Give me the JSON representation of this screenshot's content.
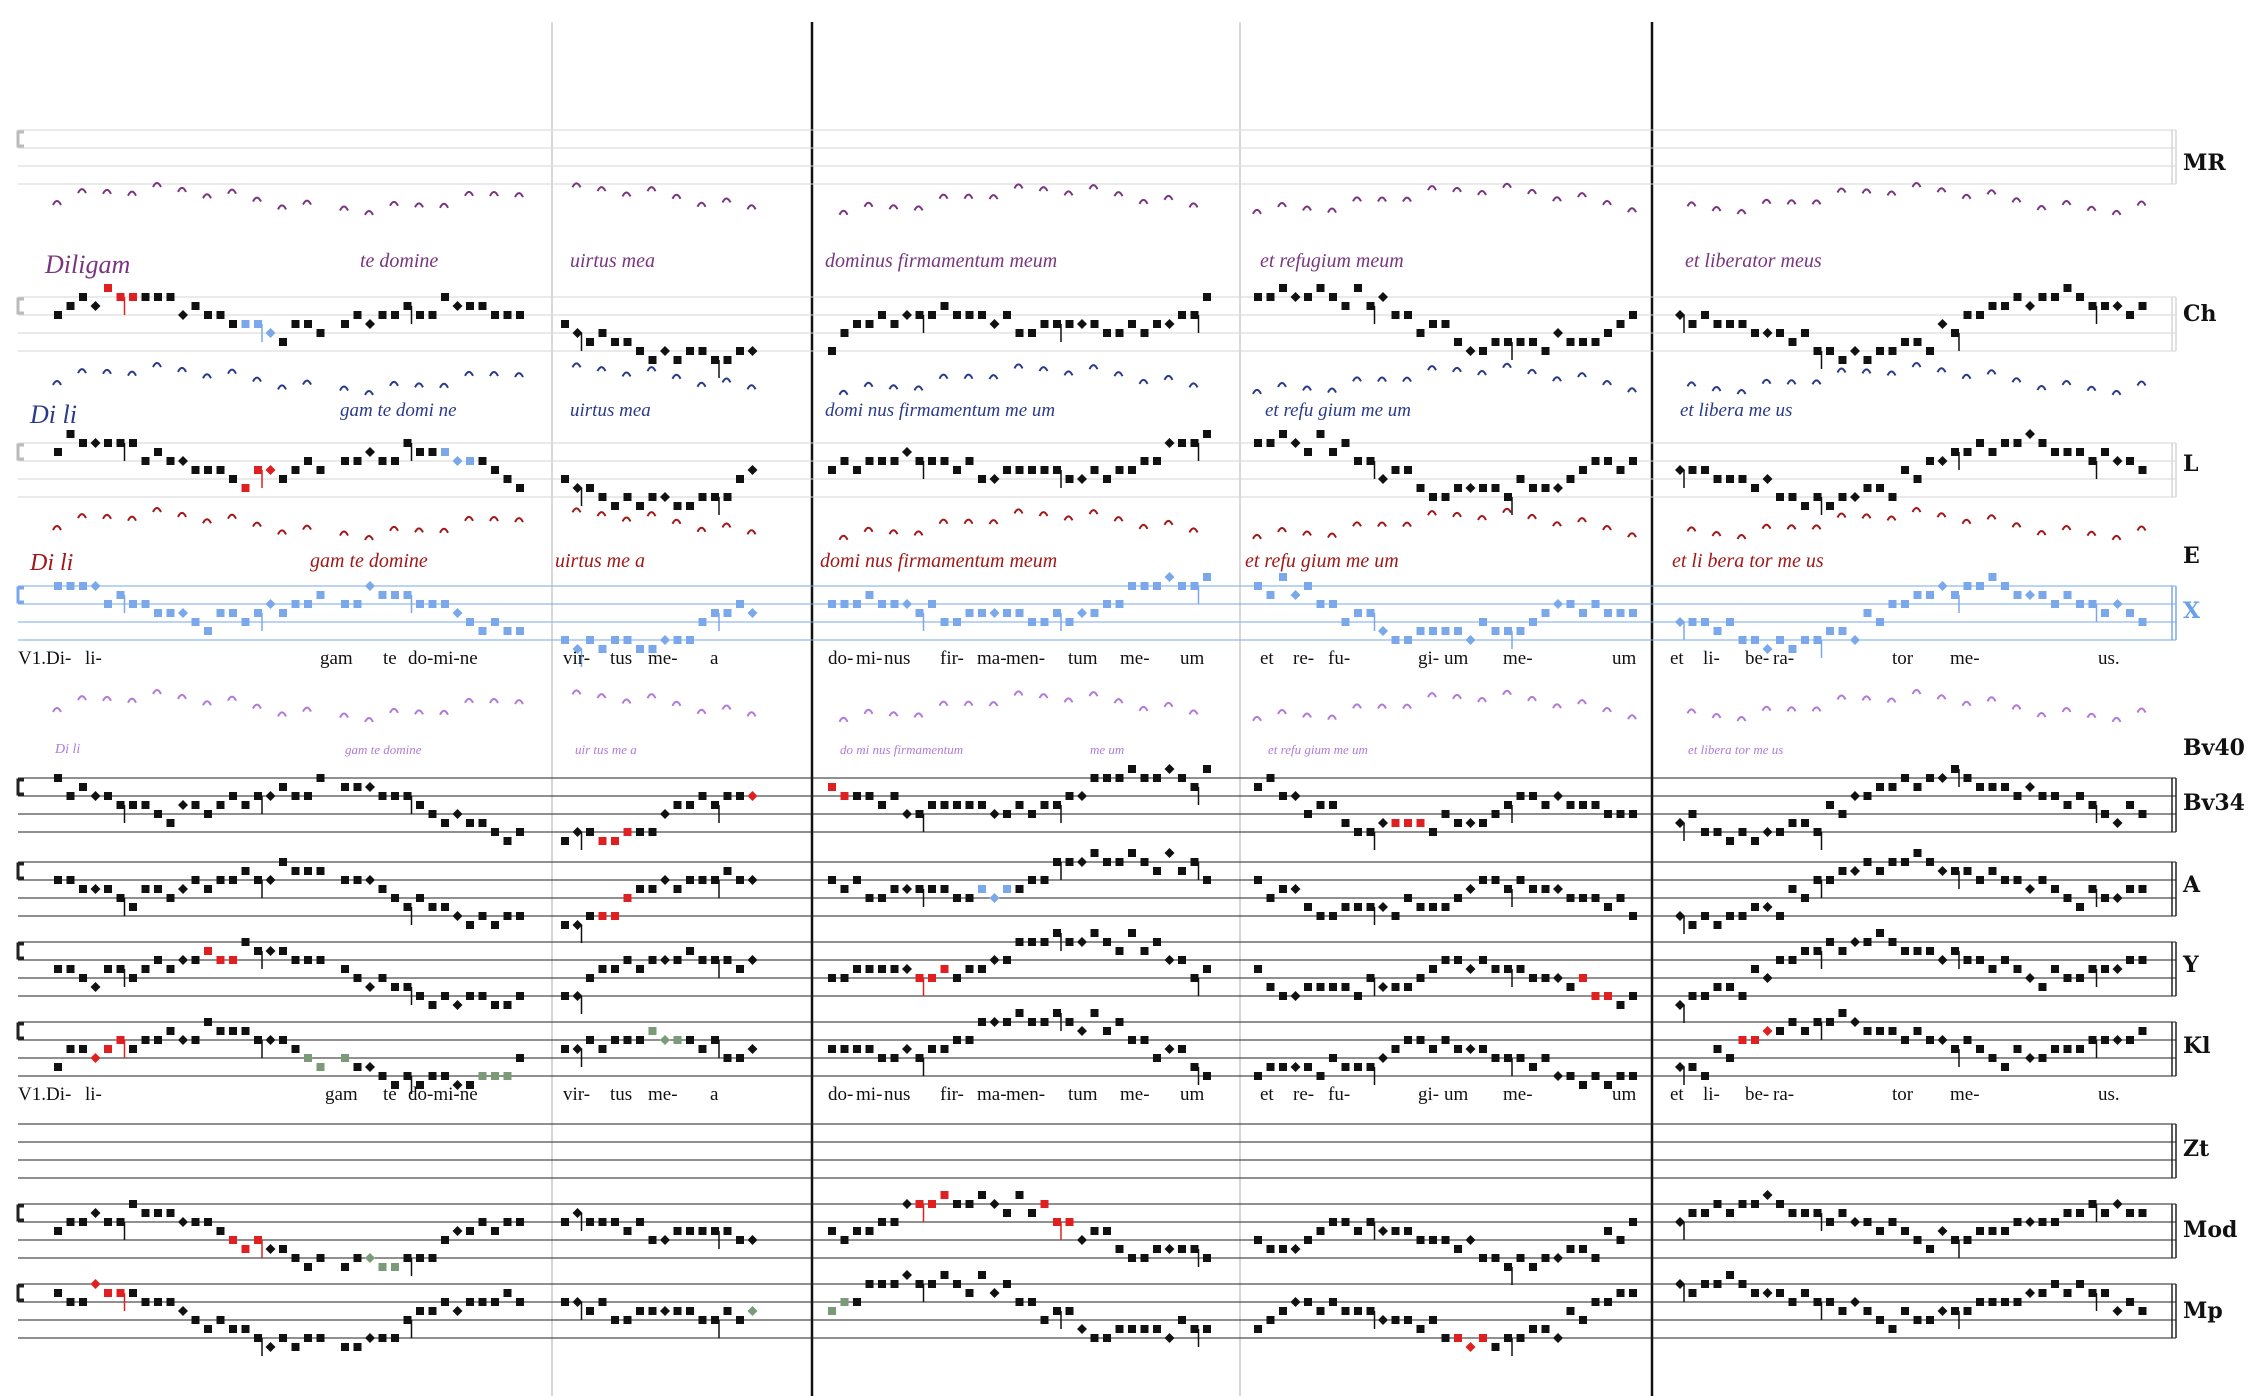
{
  "sources": [
    {
      "siglum": "MR",
      "color": "#111111"
    },
    {
      "siglum": "Ch",
      "color": "#111111"
    },
    {
      "siglum": "L",
      "color": "#111111"
    },
    {
      "siglum": "E",
      "color": "#111111"
    },
    {
      "siglum": "X",
      "color": "#6aa0e8"
    },
    {
      "siglum": "Bv40",
      "color": "#111111"
    },
    {
      "siglum": "Bv34",
      "color": "#111111"
    },
    {
      "siglum": "A",
      "color": "#111111"
    },
    {
      "siglum": "Y",
      "color": "#111111"
    },
    {
      "siglum": "Kl",
      "color": "#111111"
    },
    {
      "siglum": "Zt",
      "color": "#111111"
    },
    {
      "siglum": "Mod",
      "color": "#111111"
    },
    {
      "siglum": "Mp",
      "color": "#111111"
    }
  ],
  "lyrics_1": [
    "V1.Di-",
    "li-",
    "gam",
    "te",
    "do-mi-ne",
    "vir-",
    "tus",
    "me-",
    "a",
    "do-",
    "mi-",
    "nus",
    "fir-",
    "ma-",
    "men-",
    "tum",
    "me-",
    "um",
    "et",
    "re-",
    "fu-",
    "gi-",
    "um",
    "me-",
    "um",
    "et",
    "li-",
    "be-",
    "ra-",
    "tor",
    "me-",
    "us."
  ],
  "lyrics_2": [
    "V1.Di-",
    "li-",
    "gam",
    "te",
    "do-mi-ne",
    "vir-",
    "tus",
    "me-",
    "a",
    "do-",
    "mi-",
    "nus",
    "fir-",
    "ma-",
    "men-",
    "tum",
    "me-",
    "um",
    "et",
    "re-",
    "fu-",
    "gi-",
    "um",
    "me-",
    "um",
    "et",
    "li-",
    "be-",
    "ra-",
    "tor",
    "me-",
    "us."
  ],
  "neume_text": {
    "ch": [
      "Diligam",
      "te domine",
      "uirtus mea",
      "dominus firmamentum meum",
      "et refugium meum",
      "et liberator meus"
    ],
    "l": [
      "Di li",
      "gam te domi ne",
      "uirtus mea",
      "domi nus firmamentum me um",
      "et refu gium me um",
      "et libera me us"
    ],
    "e": [
      "Di li",
      "gam te domine",
      "uirtus me a",
      "domi nus firmamentum meum",
      "et refu gium me um",
      "et li bera tor me us"
    ],
    "bv40": [
      "Di li",
      "gam te domine",
      "uir tus me a",
      "do mi nus firmamentum",
      "me um",
      "et refu gium me um",
      "et libera tor me us"
    ]
  },
  "colors": {
    "black": "#111111",
    "red": "#e02020",
    "blue": "#7aa8ea",
    "green": "#7a9a78",
    "gray": "#888888",
    "purple": "#7a3580",
    "navy": "#2a3a8a",
    "darkred": "#a01818",
    "lavender": "#b07ad8"
  }
}
